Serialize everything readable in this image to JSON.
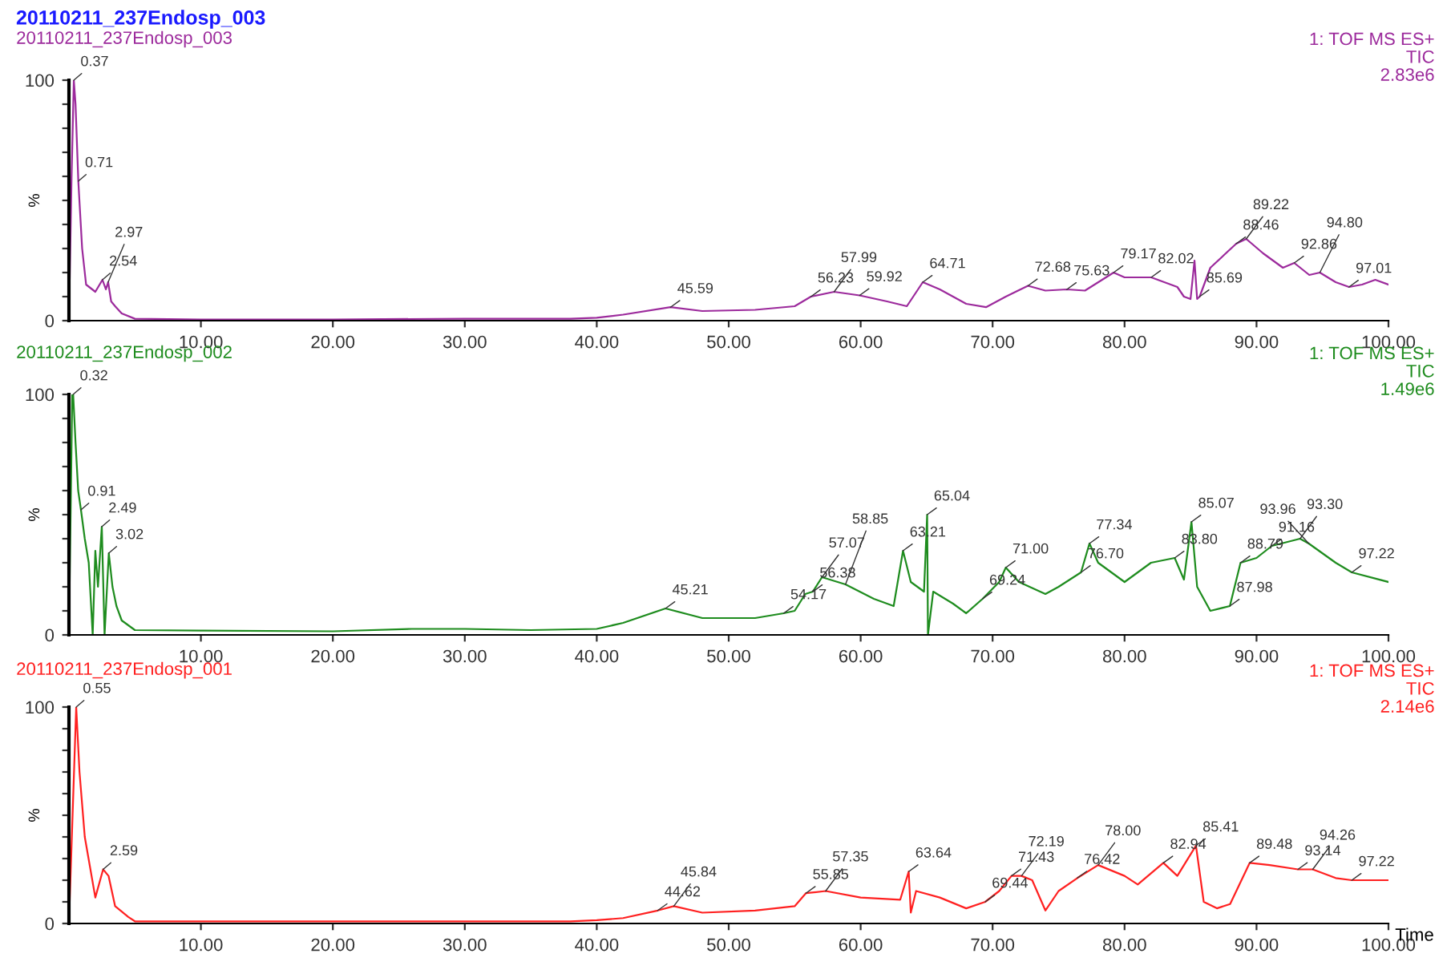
{
  "chart_data": [
    {
      "type": "line",
      "title": "20110211_237Endosp_003",
      "subtitle": "20110211_237Endosp_003",
      "ylabel": "%",
      "x": [
        0,
        0.2,
        0.37,
        0.5,
        0.71,
        1.0,
        1.3,
        2.0,
        2.54,
        2.8,
        2.97,
        3.2,
        3.5,
        4.0,
        5.0,
        10,
        20,
        30,
        38,
        40,
        42,
        45.59,
        48,
        52,
        55,
        56.23,
        57.99,
        59.92,
        62,
        63.5,
        64.71,
        66,
        68,
        69.5,
        71,
        72.68,
        74,
        75.63,
        77,
        79.17,
        80,
        82.02,
        84,
        84.5,
        85,
        85.3,
        85.5,
        85.69,
        86.5,
        88.46,
        89.22,
        90.5,
        92,
        92.86,
        94,
        94.8,
        96,
        97.01,
        98,
        99,
        100
      ],
      "series": [
        {
          "color": "#9c2a9c",
          "values": [
            0,
            60,
            100,
            90,
            58,
            30,
            15,
            12,
            17,
            13,
            16,
            8,
            6,
            3,
            0.8,
            0.5,
            0.5,
            0.8,
            0.8,
            1.2,
            2.5,
            5.6,
            4,
            4.5,
            6,
            10,
            12,
            10.5,
            8,
            6,
            16,
            13,
            7,
            5.6,
            10,
            14.5,
            12.5,
            13,
            12.5,
            20,
            18,
            18,
            14,
            10,
            9,
            25,
            9,
            10,
            22,
            32,
            34,
            28,
            22,
            24,
            19,
            20,
            16,
            14,
            15,
            17,
            15
          ]
        }
      ],
      "xlim": [
        0,
        100
      ],
      "ylim": [
        0,
        100
      ],
      "xticks": [
        {
          "value": 10,
          "label": "10.00"
        },
        {
          "value": 20,
          "label": "20.00"
        },
        {
          "value": 30,
          "label": "30.00"
        },
        {
          "value": 40,
          "label": "40.00"
        },
        {
          "value": 50,
          "label": "50.00"
        },
        {
          "value": 60,
          "label": "60.00"
        },
        {
          "value": 70,
          "label": "70.00"
        },
        {
          "value": 80,
          "label": "80.00"
        },
        {
          "value": 90,
          "label": "90.00"
        },
        {
          "value": 100,
          "label": "100.00"
        }
      ],
      "yticks": [
        0,
        {
          "value": 10,
          "label": null
        },
        {
          "value": 20,
          "label": null
        },
        {
          "value": 30,
          "label": null
        },
        {
          "value": 40,
          "label": null
        },
        {
          "value": 50,
          "label": null
        },
        {
          "value": 60,
          "label": null
        },
        {
          "value": 70,
          "label": null
        },
        {
          "value": 80,
          "label": null
        },
        {
          "value": 90,
          "label": null
        },
        100
      ],
      "annotations": [
        "1: TOF MS ES+\nTIC\n2.83e6",
        {
          "text": "0.37",
          "x": 0.37,
          "y": 100
        },
        {
          "text": "0.71",
          "x": 0.71,
          "y": 58
        },
        {
          "text": "2.54",
          "x": 2.54,
          "y": 17
        },
        {
          "text": "2.97",
          "x": 2.97,
          "y": 16
        },
        {
          "text": "45.59",
          "x": 45.59,
          "y": 5.6
        },
        {
          "text": "56.23",
          "x": 56.23,
          "y": 10
        },
        {
          "text": "57.99",
          "x": 57.99,
          "y": 12
        },
        {
          "text": "59.92",
          "x": 59.92,
          "y": 10.5
        },
        {
          "text": "64.71",
          "x": 64.71,
          "y": 16
        },
        {
          "text": "72.68",
          "x": 72.68,
          "y": 14.5
        },
        {
          "text": "75.63",
          "x": 75.63,
          "y": 13
        },
        {
          "text": "79.17",
          "x": 79.17,
          "y": 20
        },
        {
          "text": "82.02",
          "x": 82.02,
          "y": 18
        },
        {
          "text": "85.69",
          "x": 85.69,
          "y": 10
        },
        {
          "text": "88.46",
          "x": 88.46,
          "y": 32
        },
        {
          "text": "89.22",
          "x": 89.22,
          "y": 34
        },
        {
          "text": "92.86",
          "x": 92.86,
          "y": 24
        },
        {
          "text": "94.80",
          "x": 94.8,
          "y": 20
        },
        {
          "text": "97.01",
          "x": 97.01,
          "y": 14
        }
      ]
    },
    {
      "type": "line",
      "subtitle": "20110211_237Endosp_002",
      "ylabel": "%",
      "x": [
        0,
        0.25,
        0.32,
        0.5,
        0.7,
        0.91,
        1.2,
        1.5,
        1.8,
        2.0,
        2.2,
        2.49,
        2.7,
        3.02,
        3.3,
        3.6,
        4,
        5,
        10,
        20,
        26,
        30,
        35,
        40,
        42,
        45.21,
        48,
        52,
        54.17,
        55,
        55.8,
        56.38,
        57.07,
        58.85,
        61,
        62.5,
        63.21,
        63.8,
        64.8,
        65.04,
        65.1,
        65.5,
        67,
        68,
        69.24,
        70.5,
        71,
        72,
        74,
        75,
        76.7,
        77.34,
        78,
        80,
        82,
        83.8,
        84.5,
        85.07,
        85.5,
        86.5,
        87.98,
        88.79,
        90,
        91.16,
        93.3,
        93.96,
        96,
        97.22,
        100
      ],
      "series": [
        {
          "color": "#1e8c1e",
          "values": [
            0,
            100,
            100,
            80,
            60,
            52,
            40,
            30,
            0,
            35,
            20,
            45,
            0,
            34,
            20,
            12,
            6,
            2,
            1.8,
            1.5,
            2.5,
            2.5,
            2,
            2.5,
            5,
            11,
            7,
            7,
            9,
            10,
            17,
            18,
            24,
            21,
            15,
            12,
            35,
            22,
            18,
            50,
            0,
            18,
            13,
            9,
            15,
            22,
            28,
            22,
            17,
            20,
            26,
            38,
            30,
            22,
            30,
            32,
            23,
            47,
            20,
            10,
            12,
            30,
            32,
            37,
            40,
            38,
            30,
            26,
            22
          ]
        }
      ],
      "xlim": [
        0,
        100
      ],
      "ylim": [
        0,
        100
      ],
      "xticks": [
        {
          "value": 10,
          "label": "10.00"
        },
        {
          "value": 20,
          "label": "20.00"
        },
        {
          "value": 30,
          "label": "30.00"
        },
        {
          "value": 40,
          "label": "40.00"
        },
        {
          "value": 50,
          "label": "50.00"
        },
        {
          "value": 60,
          "label": "60.00"
        },
        {
          "value": 70,
          "label": "70.00"
        },
        {
          "value": 80,
          "label": "80.00"
        },
        {
          "value": 90,
          "label": "90.00"
        },
        {
          "value": 100,
          "label": "100.00"
        }
      ],
      "yticks": [
        0,
        {
          "value": 10,
          "label": null
        },
        {
          "value": 20,
          "label": null
        },
        {
          "value": 30,
          "label": null
        },
        {
          "value": 40,
          "label": null
        },
        {
          "value": 50,
          "label": null
        },
        {
          "value": 60,
          "label": null
        },
        {
          "value": 70,
          "label": null
        },
        {
          "value": 80,
          "label": null
        },
        {
          "value": 90,
          "label": null
        },
        100
      ],
      "annotations": [
        "1: TOF MS ES+\nTIC\n1.49e6",
        {
          "text": "0.32",
          "x": 0.32,
          "y": 100
        },
        {
          "text": "0.91",
          "x": 0.91,
          "y": 52
        },
        {
          "text": "2.49",
          "x": 2.49,
          "y": 45
        },
        {
          "text": "3.02",
          "x": 3.02,
          "y": 34
        },
        {
          "text": "45.21",
          "x": 45.21,
          "y": 11
        },
        {
          "text": "54.17",
          "x": 54.17,
          "y": 9
        },
        {
          "text": "56.38",
          "x": 56.38,
          "y": 18
        },
        {
          "text": "57.07",
          "x": 57.07,
          "y": 24
        },
        {
          "text": "58.85",
          "x": 58.85,
          "y": 21
        },
        {
          "text": "63.21",
          "x": 63.21,
          "y": 35
        },
        {
          "text": "65.04",
          "x": 65.04,
          "y": 50
        },
        {
          "text": "69.24",
          "x": 69.24,
          "y": 15
        },
        {
          "text": "71.00",
          "x": 71.0,
          "y": 28
        },
        {
          "text": "76.70",
          "x": 76.7,
          "y": 26
        },
        {
          "text": "77.34",
          "x": 77.34,
          "y": 38
        },
        {
          "text": "83.80",
          "x": 83.8,
          "y": 32
        },
        {
          "text": "85.07",
          "x": 85.07,
          "y": 47
        },
        {
          "text": "87.98",
          "x": 87.98,
          "y": 12
        },
        {
          "text": "88.79",
          "x": 88.79,
          "y": 30
        },
        {
          "text": "91.16",
          "x": 91.16,
          "y": 37
        },
        {
          "text": "93.30",
          "x": 93.3,
          "y": 40
        },
        {
          "text": "93.96",
          "x": 93.96,
          "y": 38
        },
        {
          "text": "97.22",
          "x": 97.22,
          "y": 26
        }
      ]
    },
    {
      "type": "line",
      "subtitle": "20110211_237Endosp_001",
      "ylabel": "%",
      "xlabel": "Time",
      "x": [
        0,
        0.55,
        0.8,
        1.2,
        2,
        2.59,
        3,
        3.5,
        4.5,
        5,
        10,
        20,
        30,
        38,
        40,
        42,
        44.62,
        45.84,
        48,
        52,
        55,
        55.85,
        57.35,
        60,
        63,
        63.64,
        63.8,
        64.2,
        66,
        68,
        69.44,
        70.5,
        71.43,
        72.19,
        73,
        74,
        75,
        76.42,
        78,
        80,
        81,
        82.94,
        84,
        85.41,
        86,
        87,
        88,
        89.48,
        91,
        93.14,
        94.26,
        96,
        97.22,
        100
      ],
      "series": [
        {
          "color": "#ff2020",
          "values": [
            0,
            100,
            70,
            40,
            12,
            25,
            22,
            8,
            3,
            1,
            1,
            1,
            1,
            1,
            1.5,
            2.5,
            6,
            8,
            5,
            6,
            8,
            14,
            15,
            12,
            11,
            24,
            5,
            15,
            12,
            7,
            10,
            15,
            22,
            22,
            20,
            6,
            15,
            21,
            27,
            22,
            18,
            28,
            22,
            36,
            10,
            7,
            9,
            28,
            27,
            25,
            25,
            21,
            20,
            20
          ]
        }
      ],
      "xlim": [
        0,
        100
      ],
      "ylim": [
        0,
        100
      ],
      "xticks": [
        {
          "value": 10,
          "label": "10.00"
        },
        {
          "value": 20,
          "label": "20.00"
        },
        {
          "value": 30,
          "label": "30.00"
        },
        {
          "value": 40,
          "label": "40.00"
        },
        {
          "value": 50,
          "label": "50.00"
        },
        {
          "value": 60,
          "label": "60.00"
        },
        {
          "value": 70,
          "label": "70.00"
        },
        {
          "value": 80,
          "label": "80.00"
        },
        {
          "value": 90,
          "label": "90.00"
        },
        {
          "value": 100,
          "label": "100.00"
        }
      ],
      "yticks": [
        0,
        {
          "value": 10,
          "label": null
        },
        {
          "value": 20,
          "label": null
        },
        {
          "value": 30,
          "label": null
        },
        {
          "value": 40,
          "label": null
        },
        {
          "value": 50,
          "label": null
        },
        {
          "value": 60,
          "label": null
        },
        {
          "value": 70,
          "label": null
        },
        {
          "value": 80,
          "label": null
        },
        {
          "value": 90,
          "label": null
        },
        100
      ],
      "annotations": [
        "1: TOF MS ES+\nTIC\n2.14e6",
        {
          "text": "0.55",
          "x": 0.55,
          "y": 100
        },
        {
          "text": "2.59",
          "x": 2.59,
          "y": 25
        },
        {
          "text": "44.62",
          "x": 44.62,
          "y": 6
        },
        {
          "text": "45.84",
          "x": 45.84,
          "y": 8
        },
        {
          "text": "55.85",
          "x": 55.85,
          "y": 14
        },
        {
          "text": "57.35",
          "x": 57.35,
          "y": 15
        },
        {
          "text": "63.64",
          "x": 63.64,
          "y": 24
        },
        {
          "text": "69.44",
          "x": 69.44,
          "y": 10
        },
        {
          "text": "71.43",
          "x": 71.43,
          "y": 22
        },
        {
          "text": "72.19",
          "x": 72.19,
          "y": 22
        },
        {
          "text": "76.42",
          "x": 76.42,
          "y": 21
        },
        {
          "text": "78.00",
          "x": 78.0,
          "y": 27
        },
        {
          "text": "82.94",
          "x": 82.94,
          "y": 28
        },
        {
          "text": "85.41",
          "x": 85.41,
          "y": 36
        },
        {
          "text": "89.48",
          "x": 89.48,
          "y": 28
        },
        {
          "text": "93.14",
          "x": 93.14,
          "y": 25
        },
        {
          "text": "94.26",
          "x": 94.26,
          "y": 25
        },
        {
          "text": "97.22",
          "x": 97.22,
          "y": 20
        }
      ]
    }
  ]
}
